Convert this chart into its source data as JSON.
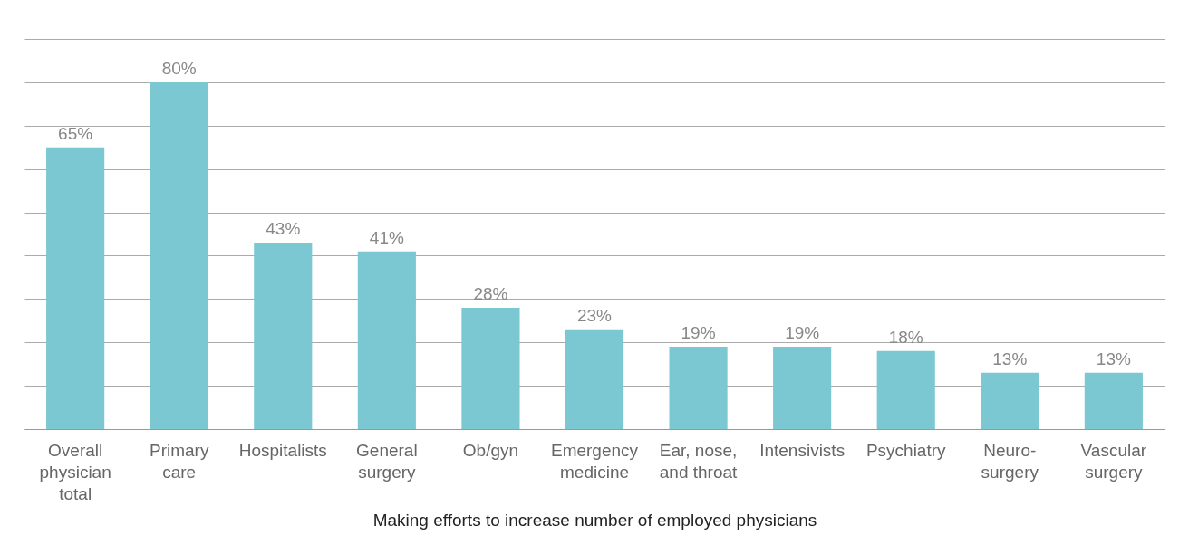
{
  "chart_data": {
    "type": "bar",
    "xlabel": "Making efforts to increase number of employed physicians",
    "categories": [
      "Overall physician total",
      "Primary care",
      "Hospitalists",
      "General surgery",
      "Ob/gyn",
      "Emergency medicine",
      "Ear, nose, and throat",
      "Intensivists",
      "Psychiatry",
      "Neuro-surgery",
      "Vascular surgery"
    ],
    "values": [
      65,
      80,
      43,
      41,
      28,
      23,
      19,
      19,
      18,
      13,
      13
    ],
    "value_labels": [
      "65%",
      "80%",
      "43%",
      "41%",
      "28%",
      "23%",
      "19%",
      "19%",
      "18%",
      "13%",
      "13%"
    ],
    "color": "#7bc8d3",
    "ylim": [
      0,
      90
    ],
    "yticks": [
      {
        "value": 0,
        "label": null
      },
      {
        "value": 10,
        "label": null
      },
      {
        "value": 20,
        "label": null
      },
      {
        "value": 30,
        "label": null
      },
      {
        "value": 40,
        "label": null
      },
      {
        "value": 50,
        "label": null
      },
      {
        "value": 60,
        "label": null
      },
      {
        "value": 70,
        "label": null
      },
      {
        "value": 80,
        "label": null
      },
      {
        "value": 90,
        "label": null
      }
    ],
    "grid": "y"
  }
}
